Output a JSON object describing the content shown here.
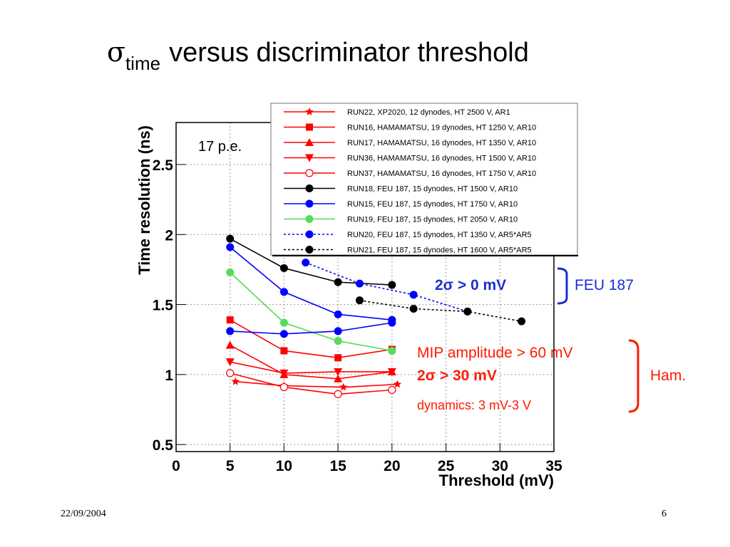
{
  "title_symbol": "σ",
  "title_sub": "time",
  "title_rest": "versus discriminator threshold",
  "footer_date": "22/09/2004",
  "page_number": "6",
  "chart_data": {
    "type": "line",
    "xlabel": "Threshold (mV)",
    "ylabel": "Time resolution (ns)",
    "xlim": [
      0,
      35
    ],
    "xticks": [
      0,
      5,
      10,
      15,
      20,
      25,
      30,
      35
    ],
    "ylim": [
      0.45,
      2.8
    ],
    "yticks": [
      0.5,
      1,
      1.5,
      2,
      2.5
    ],
    "grid": true,
    "legend": "top-right",
    "annotations": [
      "17 p.e.",
      "2σ > 0 mV",
      "FEU 187",
      "MIP amplitude > 60 mV",
      "2σ > 30 mV",
      "dynamics: 3 mV-3 V",
      "Ham."
    ],
    "series": [
      {
        "name": "RUN22, XP2020, 12 dynodes, HT 2500 V, AR1",
        "color": "#ff0000",
        "marker": "star",
        "linestyle": "solid",
        "x": [
          5.5,
          10,
          15.5,
          20.5
        ],
        "values": [
          0.95,
          0.92,
          0.91,
          0.93
        ]
      },
      {
        "name": "RUN16, HAMAMATSU, 19 dynodes, HT 1250 V, AR10",
        "color": "#ff0000",
        "marker": "square",
        "linestyle": "solid",
        "x": [
          5,
          10,
          15,
          20
        ],
        "values": [
          1.39,
          1.17,
          1.12,
          1.18
        ]
      },
      {
        "name": "RUN17, HAMAMATSU, 16 dynodes, HT 1350 V, AR10",
        "color": "#ff0000",
        "marker": "triangle",
        "linestyle": "solid",
        "x": [
          5,
          10,
          15,
          20
        ],
        "values": [
          1.21,
          1.0,
          0.97,
          1.02
        ]
      },
      {
        "name": "RUN36, HAMAMATSU, 16 dynodes, HT 1500 V, AR10",
        "color": "#ff0000",
        "marker": "triangle-down",
        "linestyle": "solid",
        "x": [
          5,
          10,
          15,
          20
        ],
        "values": [
          1.09,
          1.01,
          1.02,
          1.02
        ]
      },
      {
        "name": "RUN37, HAMAMATSU, 16 dynodes, HT 1750 V, AR10",
        "color": "#ff0000",
        "marker": "open-circle",
        "linestyle": "solid",
        "x": [
          5,
          10,
          15,
          20
        ],
        "values": [
          1.01,
          0.91,
          0.86,
          0.89
        ]
      },
      {
        "name": "RUN18, FEU 187, 15 dynodes, HT 1500 V, AR10",
        "color": "#000000",
        "marker": "circle",
        "linestyle": "solid",
        "x": [
          5,
          10,
          15,
          20
        ],
        "values": [
          1.97,
          1.76,
          1.66,
          1.64
        ]
      },
      {
        "name": "RUN15, FEU 187, 15 dynodes, HT 1750 V, AR10",
        "color": "#0000ff",
        "marker": "circle",
        "linestyle": "solid",
        "x": [
          5,
          10,
          15,
          20
        ],
        "values": [
          1.91,
          1.59,
          1.43,
          1.39
        ]
      },
      {
        "name": "RUN19, FEU 187, 15 dynodes, HT 2050 V, AR10",
        "color": "#55dd55",
        "marker": "circle",
        "linestyle": "solid",
        "x": [
          5,
          10,
          15,
          20
        ],
        "values": [
          1.73,
          1.37,
          1.24,
          1.17
        ]
      },
      {
        "name": "RUN20, FEU 187, 15 dynodes, HT 1350 V, AR5*AR5",
        "color": "#0000ff",
        "marker": "circle",
        "linestyle": "dotted",
        "x": [
          12,
          17,
          22,
          27
        ],
        "values": [
          1.8,
          1.65,
          1.57,
          1.45
        ]
      },
      {
        "name": "RUN21, FEU 187, 15 dynodes, HT 1600 V, AR5*AR5",
        "color": "#000000",
        "marker": "circle",
        "linestyle": "dotted",
        "x": [
          17,
          22,
          27,
          32
        ],
        "values": [
          1.53,
          1.47,
          1.45,
          1.38
        ]
      },
      {
        "color": "#0000ff",
        "marker": "circle",
        "linestyle": "solid",
        "x": [
          5,
          10,
          15,
          20
        ],
        "values": [
          1.31,
          1.29,
          1.31,
          1.37
        ]
      }
    ]
  }
}
